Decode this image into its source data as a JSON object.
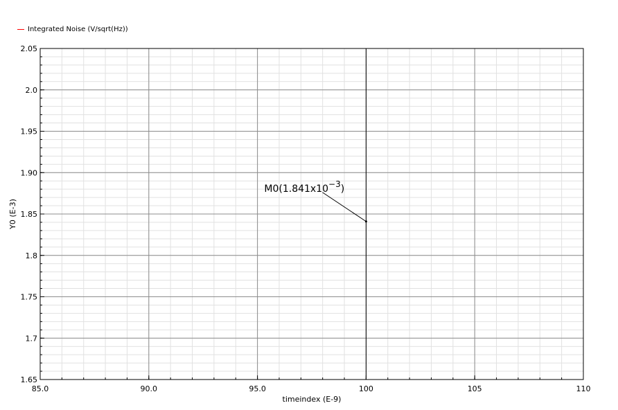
{
  "chart_data": {
    "type": "line",
    "series": [
      {
        "name": "Integrated Noise (V/sqrt(Hz))",
        "color": "#ff0000",
        "x": [
          100
        ],
        "y": [
          1.841
        ]
      }
    ],
    "xlabel": "timeindex (E-9)",
    "ylabel": "Y0 (E-3)",
    "xlim": [
      85.0,
      110
    ],
    "ylim": [
      1.65,
      2.05
    ],
    "x_ticks": [
      {
        "v": 85,
        "label": "85.0"
      },
      {
        "v": 90,
        "label": "90.0"
      },
      {
        "v": 95,
        "label": "95.0"
      },
      {
        "v": 100,
        "label": "100"
      },
      {
        "v": 105,
        "label": "105"
      },
      {
        "v": 110,
        "label": "110"
      }
    ],
    "y_ticks": [
      {
        "v": 1.65,
        "label": "1.65"
      },
      {
        "v": 1.7,
        "label": "1.7"
      },
      {
        "v": 1.75,
        "label": "1.75"
      },
      {
        "v": 1.8,
        "label": "1.8"
      },
      {
        "v": 1.85,
        "label": "1.85"
      },
      {
        "v": 1.9,
        "label": "1.90"
      },
      {
        "v": 1.95,
        "label": "1.95"
      },
      {
        "v": 2.0,
        "label": "2.0"
      },
      {
        "v": 2.05,
        "label": "2.05"
      }
    ],
    "vertical_marker": {
      "x": 100
    },
    "marker": {
      "label_main": "M0(1.841x10",
      "label_exp": "−3",
      "label_close": ")",
      "x": 100,
      "y": 1.841
    },
    "grid": true,
    "legend_position": "top-left"
  }
}
